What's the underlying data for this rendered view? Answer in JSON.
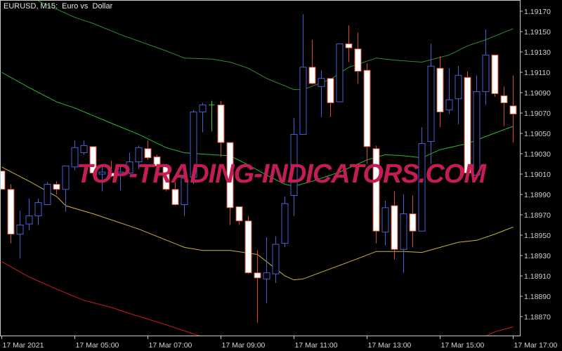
{
  "window": {
    "title": "EURUSD, M15:  Euro vs  Dollar"
  },
  "watermark": "TOP-TRADING-INDICATORS.COM",
  "colors": {
    "background": "#000000",
    "bull": "#4b5fd0",
    "bear_body": "#ffffff",
    "bear_outline": "#d84a28",
    "doji": "#2fd02f",
    "axis": "#c8c8c8",
    "upper_band": "#2f8f2f",
    "middle_band": "#2cb82c",
    "lower_band": "#c8b43a",
    "bottom_band": "#c81e1e",
    "watermark": "#c21d55"
  },
  "chart_data": {
    "type": "candlestick",
    "symbol": "EURUSD",
    "timeframe": "M15",
    "ylim": [
      1.18855,
      1.1918
    ],
    "y_ticks": [
      "1.19170",
      "1.19150",
      "1.19130",
      "1.19110",
      "1.19090",
      "1.19070",
      "1.19050",
      "1.19030",
      "1.19010",
      "1.18990",
      "1.18970",
      "1.18950",
      "1.18930",
      "1.18910",
      "1.18890",
      "1.18870"
    ],
    "x_ticks": [
      {
        "bar": 0,
        "label": "17 Mar 2021"
      },
      {
        "bar": 8,
        "label": "17 Mar 05:00"
      },
      {
        "bar": 16,
        "label": "17 Mar 07:00"
      },
      {
        "bar": 24,
        "label": "17 Mar 09:00"
      },
      {
        "bar": 32,
        "label": "17 Mar 11:00"
      },
      {
        "bar": 40,
        "label": "17 Mar 13:00"
      },
      {
        "bar": 48,
        "label": "17 Mar 15:00"
      },
      {
        "bar": 56,
        "label": "17 Mar 17:00"
      }
    ],
    "ohlc": [
      [
        1.19013,
        1.19013,
        1.18995,
        1.18995
      ],
      [
        1.18995,
        1.19,
        1.18942,
        1.18951
      ],
      [
        1.18951,
        1.18974,
        1.18927,
        1.1896
      ],
      [
        1.18961,
        1.18986,
        1.18955,
        1.18969
      ],
      [
        1.18969,
        1.18986,
        1.1896,
        1.18982
      ],
      [
        1.1898,
        1.19002,
        1.1898,
        1.19
      ],
      [
        1.19,
        1.19003,
        1.1899,
        1.18995
      ],
      [
        1.18995,
        1.19018,
        1.18973,
        1.19018
      ],
      [
        1.19017,
        1.19043,
        1.19014,
        1.19036
      ],
      [
        1.19031,
        1.19043,
        1.19029,
        1.19038
      ],
      [
        1.19037,
        1.19037,
        1.19009,
        1.19011
      ],
      [
        1.1901,
        1.19017,
        1.18993,
        1.19012
      ],
      [
        1.19011,
        1.19023,
        1.19007,
        1.19008
      ],
      [
        1.1901,
        1.19018,
        1.18994,
        1.19012
      ],
      [
        1.19011,
        1.19031,
        1.1901,
        1.19022
      ],
      [
        1.19022,
        1.19038,
        1.19015,
        1.19036
      ],
      [
        1.19035,
        1.19043,
        1.19024,
        1.19026
      ],
      [
        1.19027,
        1.19029,
        1.19015,
        1.19018
      ],
      [
        1.19018,
        1.1902,
        1.18993,
        1.18995
      ],
      [
        1.18995,
        1.19002,
        1.18979,
        1.1898
      ],
      [
        1.1898,
        1.19007,
        1.18969,
        1.19006
      ],
      [
        1.19007,
        1.19073,
        1.19,
        1.19071
      ],
      [
        1.19071,
        1.1908,
        1.19051,
        1.19078
      ],
      [
        1.19078,
        1.19082,
        1.19052,
        1.19078
      ],
      [
        1.19078,
        1.19082,
        1.19027,
        1.19041
      ],
      [
        1.19041,
        1.19041,
        1.1896,
        1.18977
      ],
      [
        1.18978,
        1.18978,
        1.1896,
        1.18964
      ],
      [
        1.18964,
        1.18969,
        1.18912,
        1.18913
      ],
      [
        1.18913,
        1.18935,
        1.18864,
        1.18908
      ],
      [
        1.18907,
        1.18948,
        1.18883,
        1.18913
      ],
      [
        1.18912,
        1.18949,
        1.18903,
        1.18941
      ],
      [
        1.18942,
        1.18988,
        1.18938,
        1.18981
      ],
      [
        1.18989,
        1.19065,
        1.18969,
        1.19049
      ],
      [
        1.19049,
        1.19167,
        1.19049,
        1.19115
      ],
      [
        1.19115,
        1.19142,
        1.19098,
        1.19099
      ],
      [
        1.19096,
        1.19112,
        1.19066,
        1.19104
      ],
      [
        1.19104,
        1.19104,
        1.19066,
        1.1908
      ],
      [
        1.19081,
        1.19138,
        1.19081,
        1.19138
      ],
      [
        1.19138,
        1.19156,
        1.1912,
        1.19134
      ],
      [
        1.19133,
        1.19149,
        1.19099,
        1.19111
      ],
      [
        1.19112,
        1.19119,
        1.1902,
        1.19037
      ],
      [
        1.19035,
        1.19038,
        1.18942,
        1.18954
      ],
      [
        1.18953,
        1.18984,
        1.1894,
        1.18977
      ],
      [
        1.18979,
        1.18993,
        1.18926,
        1.18936
      ],
      [
        1.18936,
        1.1899,
        1.18913,
        1.18971
      ],
      [
        1.18971,
        1.18989,
        1.18938,
        1.18954
      ],
      [
        1.18954,
        1.19056,
        1.18954,
        1.1904
      ],
      [
        1.19042,
        1.19138,
        1.1902,
        1.19116
      ],
      [
        1.19114,
        1.19126,
        1.19056,
        1.19071
      ],
      [
        1.19073,
        1.19114,
        1.19069,
        1.19083
      ],
      [
        1.19084,
        1.19116,
        1.19059,
        1.19107
      ],
      [
        1.19105,
        1.19111,
        1.19011,
        1.19011
      ],
      [
        1.19009,
        1.19107,
        1.19009,
        1.19091
      ],
      [
        1.19091,
        1.19152,
        1.19078,
        1.19127
      ],
      [
        1.19127,
        1.19127,
        1.19086,
        1.19089
      ],
      [
        1.19087,
        1.19096,
        1.19057,
        1.1908
      ],
      [
        1.19077,
        1.19107,
        1.19041,
        1.19069
      ]
    ],
    "ohlc_fields": [
      "open",
      "high",
      "low",
      "close"
    ],
    "lines": [
      {
        "key": "upper_band",
        "points": [
          [
            4,
            1.1918
          ],
          [
            8,
            1.19164
          ],
          [
            10,
            1.19158
          ],
          [
            13,
            1.19147
          ],
          [
            18,
            1.19131
          ],
          [
            20,
            1.19124
          ],
          [
            23,
            1.19123
          ],
          [
            25,
            1.1912
          ],
          [
            27,
            1.19114
          ],
          [
            29,
            1.19104
          ],
          [
            32,
            1.19093
          ],
          [
            33,
            1.19093
          ],
          [
            36,
            1.19103
          ],
          [
            38,
            1.19115
          ],
          [
            41,
            1.19124
          ],
          [
            43,
            1.19122
          ],
          [
            46,
            1.1912
          ],
          [
            49,
            1.19127
          ],
          [
            51,
            1.19136
          ],
          [
            53,
            1.19142
          ],
          [
            56,
            1.19153
          ]
        ]
      },
      {
        "key": "middle_band",
        "points": [
          [
            0,
            1.1911
          ],
          [
            3,
            1.19095
          ],
          [
            6,
            1.19081
          ],
          [
            8,
            1.19075
          ],
          [
            12,
            1.1906
          ],
          [
            15,
            1.19049
          ],
          [
            18,
            1.19036
          ],
          [
            20,
            1.19031
          ],
          [
            23,
            1.19029
          ],
          [
            25,
            1.19028
          ],
          [
            27,
            1.19019
          ],
          [
            29,
            1.19009
          ],
          [
            31,
            1.19
          ],
          [
            32,
            1.18998
          ],
          [
            34,
            1.19003
          ],
          [
            37,
            1.19012
          ],
          [
            40,
            1.19024
          ],
          [
            42,
            1.19029
          ],
          [
            44,
            1.19028
          ],
          [
            46,
            1.19026
          ],
          [
            48,
            1.19034
          ],
          [
            50,
            1.19038
          ],
          [
            51,
            1.1904
          ],
          [
            53,
            1.19047
          ],
          [
            56,
            1.19057
          ]
        ]
      },
      {
        "key": "lower_band",
        "points": [
          [
            0,
            1.19017
          ],
          [
            3,
            1.19003
          ],
          [
            6,
            1.18988
          ],
          [
            7,
            1.18979
          ],
          [
            10,
            1.18971
          ],
          [
            15,
            1.18956
          ],
          [
            20,
            1.18938
          ],
          [
            22,
            1.18935
          ],
          [
            25,
            1.18935
          ],
          [
            28,
            1.18931
          ],
          [
            30,
            1.18917
          ],
          [
            31,
            1.1891
          ],
          [
            32,
            1.18906
          ],
          [
            33,
            1.18907
          ],
          [
            36,
            1.18917
          ],
          [
            39,
            1.18927
          ],
          [
            41,
            1.18934
          ],
          [
            44,
            1.18934
          ],
          [
            46,
            1.18933
          ],
          [
            48,
            1.18938
          ],
          [
            50,
            1.18943
          ],
          [
            52,
            1.18945
          ],
          [
            54,
            1.18951
          ],
          [
            56,
            1.18958
          ]
        ]
      },
      {
        "key": "bottom_band",
        "points": [
          [
            0,
            1.18924
          ],
          [
            3,
            1.18909
          ],
          [
            6,
            1.18897
          ],
          [
            9,
            1.18886
          ],
          [
            12,
            1.18879
          ],
          [
            14,
            1.18873
          ],
          [
            18,
            1.18862
          ],
          [
            21,
            1.18853
          ],
          [
            25,
            1.18842
          ],
          null,
          [
            53,
            1.18851
          ],
          [
            54,
            1.18855
          ],
          [
            56,
            1.1886
          ]
        ]
      }
    ]
  }
}
